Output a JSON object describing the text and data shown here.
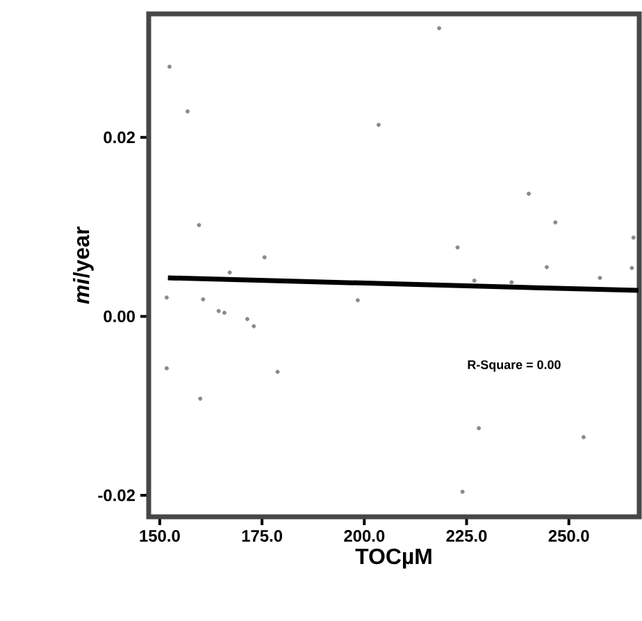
{
  "chart_data": {
    "type": "scatter",
    "xlabel": "TOCµM",
    "ylabel": "*mi*/year",
    "annotations": [
      "R-Square = 0.00"
    ],
    "xlim": [
      147.3,
      267.2
    ],
    "ylim": [
      -0.0224,
      0.0338
    ],
    "xticks": [
      {
        "value": 150,
        "label": "150.0"
      },
      {
        "value": 175,
        "label": "175.0"
      },
      {
        "value": 200,
        "label": "200.0"
      },
      {
        "value": 225,
        "label": "225.0"
      },
      {
        "value": 250,
        "label": "250.0"
      }
    ],
    "yticks": [
      {
        "value": -0.02,
        "label": "-0.02"
      },
      {
        "value": 0,
        "label": "0.00"
      },
      {
        "value": 0.02,
        "label": "0.02"
      }
    ],
    "grid": false,
    "series": [
      {
        "marker": "circle",
        "color": "#8a8a8a",
        "x": [
          152.4,
          156.8,
          159.6,
          175.6,
          218.3,
          203.5,
          240.2,
          246.7,
          265.8,
          222.8,
          244.6,
          265.4,
          226.9,
          236.0,
          257.6,
          151.7,
          160.6,
          164.4,
          165.8,
          171.4,
          173.0,
          167.1,
          151.7,
          159.9,
          178.8,
          198.4,
          228.0,
          253.6,
          224.0
        ],
        "values": [
          0.0279,
          0.0229,
          0.0102,
          0.0066,
          0.0322,
          0.0214,
          0.0137,
          0.0105,
          0.0088,
          0.0077,
          0.0055,
          0.0054,
          0.004,
          0.0038,
          0.0043,
          0.0021,
          0.0019,
          0.0006,
          0.0004,
          -0.0003,
          -0.0011,
          0.0049,
          -0.0058,
          -0.0092,
          -0.0062,
          0.0018,
          -0.0125,
          -0.0135,
          -0.0196
        ]
      },
      {
        "type": "line",
        "marker": "none",
        "color": "#000000",
        "x": [
          152,
          267
        ],
        "values": [
          0.0043,
          0.0029
        ]
      }
    ]
  }
}
